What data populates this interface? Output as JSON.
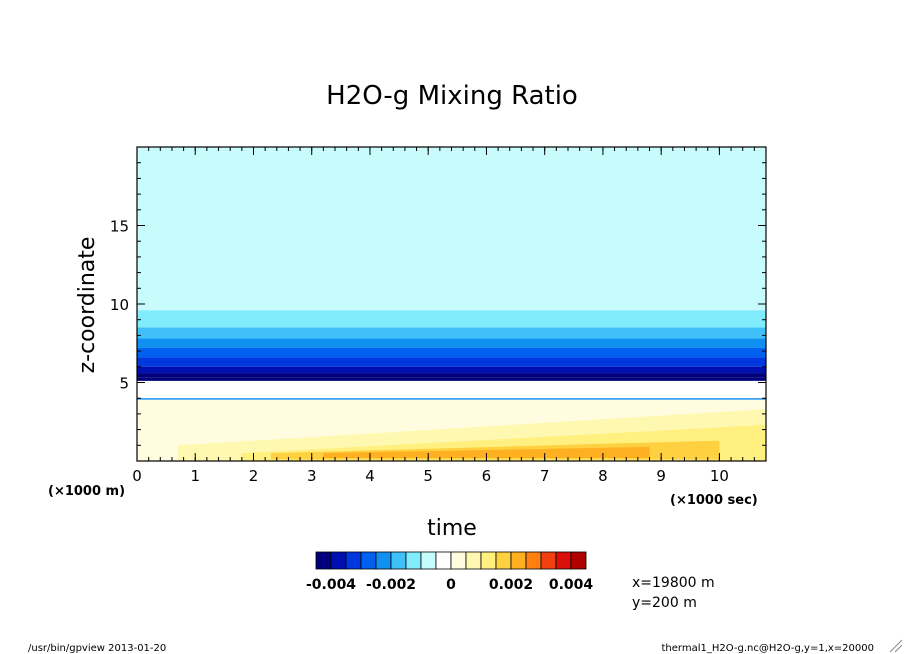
{
  "chart_data": {
    "type": "heatmap",
    "title": "H2O-g Mixing Ratio",
    "xlabel": "time",
    "ylabel": "z-coordinate",
    "x_scale_label": "(×1000 sec)",
    "y_scale_label": "(×1000 m)",
    "xlim": [
      0,
      10.8
    ],
    "ylim": [
      0,
      20
    ],
    "x_ticks": [
      0,
      1,
      2,
      3,
      4,
      5,
      6,
      7,
      8,
      9,
      10
    ],
    "y_ticks": [
      5,
      10,
      15
    ],
    "colorbar": {
      "levels": [
        -0.0045,
        -0.004,
        -0.0035,
        -0.003,
        -0.0025,
        -0.002,
        -0.0015,
        -0.001,
        -0.0005,
        0,
        0.0005,
        0.001,
        0.0015,
        0.002,
        0.0025,
        0.003,
        0.0035,
        0.004,
        0.0045
      ],
      "colors": [
        "#00007a",
        "#0010b0",
        "#0038e0",
        "#0060f0",
        "#1090f0",
        "#40c0f8",
        "#80ecfc",
        "#c8fcfc",
        "#ffffff",
        "#fffce0",
        "#fff8b0",
        "#fff080",
        "#ffd040",
        "#ffb020",
        "#ff8010",
        "#f04010",
        "#d81008",
        "#b00000"
      ],
      "tick_labels": [
        "-0.004",
        "-0.002",
        "0",
        "0.002",
        "0.004"
      ],
      "tick_values": [
        -0.004,
        -0.002,
        0,
        0.002,
        0.004
      ]
    },
    "bands": [
      {
        "z0": 9.6,
        "z1": 20.0,
        "value": -0.00075
      },
      {
        "z0": 8.5,
        "z1": 9.6,
        "value": -0.00125
      },
      {
        "z0": 7.8,
        "z1": 8.5,
        "value": -0.00175
      },
      {
        "z0": 7.2,
        "z1": 7.8,
        "value": -0.00225
      },
      {
        "z0": 6.6,
        "z1": 7.2,
        "value": -0.00275
      },
      {
        "z0": 6.0,
        "z1": 6.6,
        "value": -0.00325
      },
      {
        "z0": 5.6,
        "z1": 6.0,
        "value": -0.00375
      },
      {
        "z0": 5.3,
        "z1": 5.6,
        "value": -0.00425
      },
      {
        "z0": 5.1,
        "z1": 5.3,
        "value": -0.0045
      },
      {
        "z0": 4.0,
        "z1": 5.1,
        "value": -0.00025
      },
      {
        "z0": 3.9,
        "z1": 4.0,
        "value": -0.00225
      },
      {
        "z0": 0.0,
        "z1": 3.9,
        "value": 0.00025
      }
    ],
    "positive_regions": [
      {
        "value": 0.00075,
        "x": [
          0.7,
          10.8,
          10.8,
          0.7
        ],
        "z": [
          0.0,
          0.0,
          3.3,
          1.0
        ],
        "note": ""
      },
      {
        "value": 0.00125,
        "x": [
          1.8,
          10.8,
          10.8,
          1.8
        ],
        "z": [
          0.0,
          0.0,
          2.3,
          0.5
        ]
      },
      {
        "value": 0.00175,
        "x": [
          2.3,
          10.0,
          10.0,
          2.3
        ],
        "z": [
          0.1,
          0.1,
          1.3,
          0.5
        ]
      },
      {
        "value": 0.00225,
        "x": [
          3.2,
          8.8,
          8.8,
          3.2
        ],
        "z": [
          0.2,
          0.2,
          0.9,
          0.5
        ]
      }
    ],
    "annotations": [
      "x=19800 m",
      "y=200 m"
    ]
  },
  "footer": {
    "left": "/usr/bin/gpview  2013-01-20",
    "right": "thermal1_H2O-g.nc@H2O-g,y=1,x=20000"
  }
}
